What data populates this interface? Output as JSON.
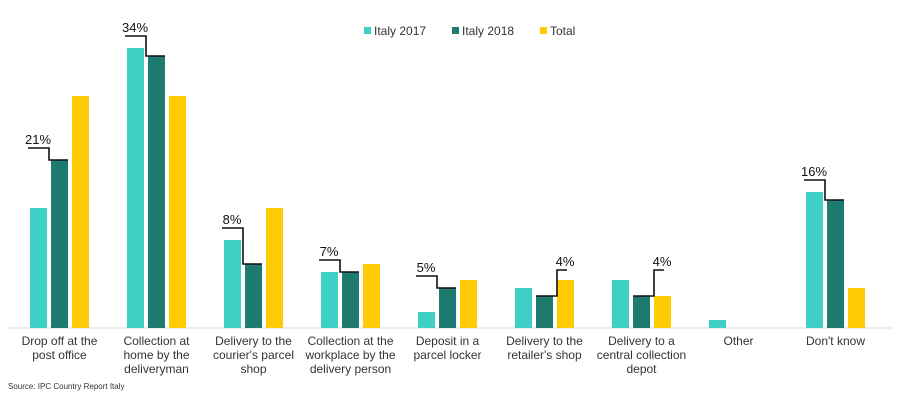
{
  "chart_data": {
    "type": "bar",
    "title": "",
    "xlabel": "",
    "ylabel": "",
    "ylim": [
      0,
      35
    ],
    "grid": false,
    "legend_position": "top-center",
    "categories": [
      [
        "Drop off at the",
        "post office"
      ],
      [
        "Collection at",
        "home by the",
        "deliveryman"
      ],
      [
        "Delivery to the",
        "courier's parcel",
        "shop"
      ],
      [
        "Collection at the",
        "workplace by the",
        "delivery person"
      ],
      [
        "Deposit in a",
        "parcel locker"
      ],
      [
        "Delivery to the",
        "retailer's shop"
      ],
      [
        "Delivery to a",
        "central collection",
        "depot"
      ],
      [
        "Other"
      ],
      [
        "Don't know"
      ]
    ],
    "series": [
      {
        "name": "Italy 2017",
        "color": "#3ecfc5",
        "values": [
          15,
          35,
          11,
          7,
          2,
          5,
          6,
          1,
          17
        ]
      },
      {
        "name": "Italy 2018",
        "color": "#1f7b70",
        "values": [
          21,
          34,
          8,
          7,
          5,
          4,
          4,
          0,
          16
        ]
      },
      {
        "name": "Total",
        "color": "#ffcb05",
        "values": [
          29,
          29,
          15,
          8,
          6,
          6,
          4,
          0,
          5
        ]
      }
    ],
    "annotations": [
      {
        "category_index": 0,
        "text": "21%",
        "style": "left"
      },
      {
        "category_index": 1,
        "text": "34%",
        "style": "left"
      },
      {
        "category_index": 2,
        "text": "8%",
        "style": "left"
      },
      {
        "category_index": 3,
        "text": "7%",
        "style": "left"
      },
      {
        "category_index": 4,
        "text": "5%",
        "style": "left"
      },
      {
        "category_index": 5,
        "text": "4%",
        "style": "right"
      },
      {
        "category_index": 6,
        "text": "4%",
        "style": "right"
      },
      {
        "category_index": 8,
        "text": "16%",
        "style": "left"
      }
    ]
  },
  "source": "Source: IPC Country Report Italy"
}
